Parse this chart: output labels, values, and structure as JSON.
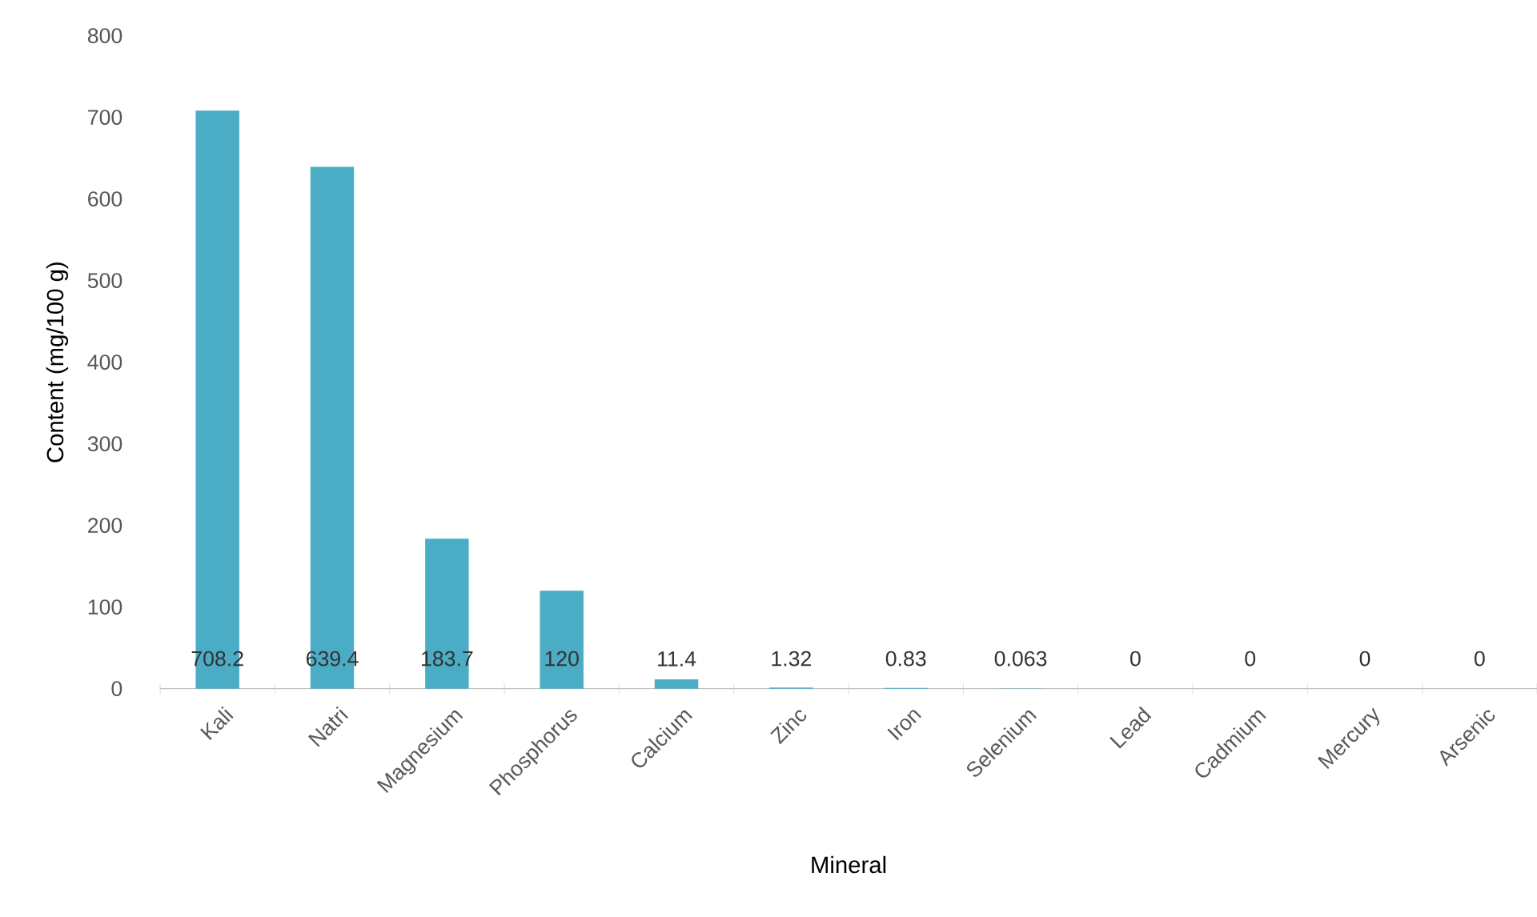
{
  "chart_data": {
    "type": "bar",
    "xlabel": "Mineral",
    "ylabel": "Content (mg/100 g)",
    "categories": [
      "Kali",
      "Natri",
      "Magnesium",
      "Phosphorus",
      "Calcium",
      "Zinc",
      "Iron",
      "Selenium",
      "Lead",
      "Cadmium",
      "Mercury",
      "Arsenic"
    ],
    "values": [
      708.2,
      639.4,
      183.7,
      120,
      11.4,
      1.32,
      0.83,
      0.063,
      0,
      0,
      0,
      0
    ],
    "color": "#4bacc6",
    "ylim": [
      0,
      800
    ],
    "yticks": [
      0,
      100,
      200,
      300,
      400,
      500,
      600,
      700,
      800
    ],
    "data_labels": true
  }
}
